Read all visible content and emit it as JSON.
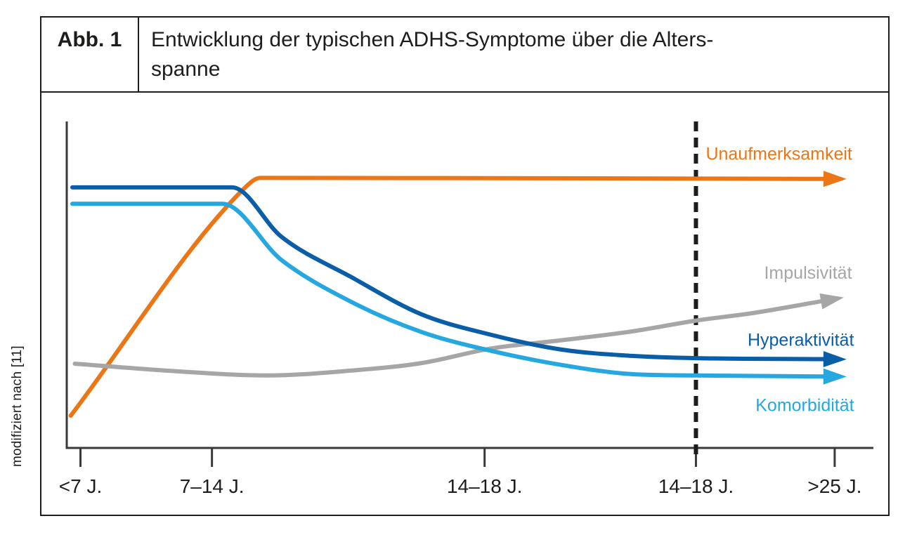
{
  "figure": {
    "label": "Abb. 1",
    "title_line1": "Entwicklung der typischen ADHS-Symptome über die Alters-",
    "title_line2": "spanne",
    "source_note": "modifiziert nach [11]"
  },
  "colors": {
    "ink": "#1d1d1b",
    "axis": "#3a3a3a",
    "dashed_line": "#1d1d1b",
    "orange": "#ea7616",
    "dark_blue": "#0a5da7",
    "light_blue": "#25a7e0",
    "gray": "#a6a6a6"
  },
  "chart_data": {
    "type": "line",
    "title": "Entwicklung der typischen ADHS-Symptome über die Altersspanne",
    "x_axis": {
      "categories": [
        "<7 J.",
        "7–14 J.",
        "14–18 J.",
        "14–18 J.",
        ">25 J."
      ],
      "tick_positions_pct": [
        1.7,
        18.0,
        51.8,
        78.0,
        95.2
      ]
    },
    "y_axis": {
      "labels_visible": false,
      "range_pct": [
        0,
        100
      ]
    },
    "grid": false,
    "legend_position": "labels-at-line-ends-right",
    "annotations": [
      {
        "type": "vertical-dashed-line",
        "x_pct": 78.0
      }
    ],
    "series": [
      {
        "name": "Unaufmerksamkeit",
        "color": "#ea7616",
        "label_pos": [
          88.3,
          90.0
        ],
        "points": [
          [
            0.5,
            9.9
          ],
          [
            22.0,
            79.5
          ],
          [
            24.0,
            82.7
          ],
          [
            60.0,
            82.6
          ],
          [
            93.8,
            82.4
          ]
        ]
      },
      {
        "name": "Impulsivität",
        "color": "#a6a6a6",
        "label_pos": [
          91.9,
          53.5
        ],
        "points": [
          [
            1.0,
            25.8
          ],
          [
            13.5,
            23.5
          ],
          [
            24.8,
            22.2
          ],
          [
            35.3,
            23.7
          ],
          [
            44.0,
            26.0
          ],
          [
            52.7,
            30.5
          ],
          [
            61.4,
            33.0
          ],
          [
            70.1,
            35.7
          ],
          [
            78.0,
            39.0
          ],
          [
            85.0,
            41.3
          ],
          [
            93.5,
            44.9
          ]
        ]
      },
      {
        "name": "Hyperaktivität",
        "color": "#0a5da7",
        "label_pos": [
          91.0,
          33.0
        ],
        "points": [
          [
            0.7,
            79.8
          ],
          [
            20.5,
            79.8
          ],
          [
            26.6,
            64.7
          ],
          [
            35.3,
            52.3
          ],
          [
            44.0,
            40.9
          ],
          [
            52.7,
            34.6
          ],
          [
            61.4,
            30.1
          ],
          [
            70.1,
            28.2
          ],
          [
            78.0,
            27.5
          ],
          [
            93.8,
            27.2
          ]
        ]
      },
      {
        "name": "Komorbidität",
        "color": "#25a7e0",
        "label_pos": [
          91.5,
          13.0
        ],
        "points": [
          [
            0.7,
            74.8
          ],
          [
            19.3,
            74.8
          ],
          [
            26.6,
            57.6
          ],
          [
            35.3,
            44.7
          ],
          [
            44.0,
            35.5
          ],
          [
            52.7,
            29.7
          ],
          [
            61.4,
            25.4
          ],
          [
            70.1,
            22.6
          ],
          [
            78.0,
            22.2
          ],
          [
            93.8,
            21.9
          ]
        ]
      }
    ]
  }
}
